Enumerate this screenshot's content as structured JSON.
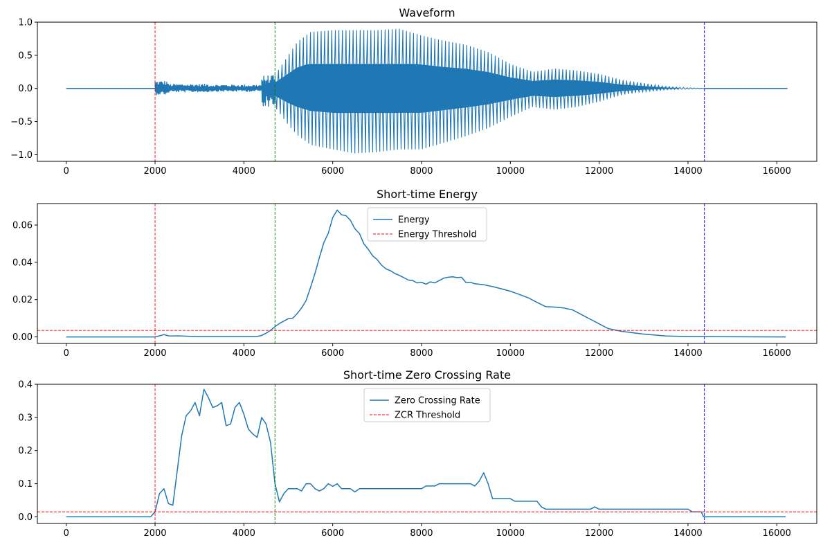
{
  "chart_data": [
    {
      "type": "line",
      "title": "Waveform",
      "xlim": [
        -650,
        16900
      ],
      "ylim": [
        -1.1,
        1.0
      ],
      "xticks": [
        0,
        2000,
        4000,
        6000,
        8000,
        10000,
        12000,
        14000,
        16000
      ],
      "yticks": [
        -1.0,
        -0.5,
        0.0,
        0.5,
        1.0
      ],
      "ytick_decimals": 1,
      "legend": null,
      "series": [
        {
          "kind": "waveform",
          "color": "#1f77b4",
          "x_range": [
            0,
            16240
          ],
          "silence": [
            0,
            2000
          ],
          "segments": [
            {
              "x": [
                2000,
                2300
              ],
              "pos": 0.12,
              "neg": -0.1
            },
            {
              "x": [
                2300,
                3200
              ],
              "pos": 0.07,
              "neg": -0.06
            },
            {
              "x": [
                3200,
                4400
              ],
              "pos": 0.06,
              "neg": -0.05
            },
            {
              "x": [
                4400,
                4700
              ],
              "pos": 0.2,
              "neg": -0.28
            }
          ],
          "envelope": [
            [
              4700,
              0.2,
              -0.28
            ],
            [
              5000,
              0.5,
              -0.55
            ],
            [
              5200,
              0.7,
              -0.7
            ],
            [
              5500,
              0.85,
              -0.85
            ],
            [
              6000,
              0.88,
              -0.92
            ],
            [
              6500,
              0.88,
              -0.98
            ],
            [
              7000,
              0.88,
              -0.96
            ],
            [
              7500,
              0.9,
              -0.92
            ],
            [
              8000,
              0.8,
              -0.92
            ],
            [
              8500,
              0.72,
              -0.82
            ],
            [
              9000,
              0.66,
              -0.72
            ],
            [
              9500,
              0.55,
              -0.6
            ],
            [
              10000,
              0.37,
              -0.43
            ],
            [
              10500,
              0.25,
              -0.28
            ],
            [
              11000,
              0.3,
              -0.32
            ],
            [
              11500,
              0.27,
              -0.28
            ],
            [
              12000,
              0.22,
              -0.2
            ],
            [
              12500,
              0.13,
              -0.1
            ],
            [
              13000,
              0.08,
              -0.05
            ],
            [
              13500,
              0.03,
              -0.02
            ],
            [
              14000,
              0.01,
              -0.01
            ],
            [
              14350,
              0.0,
              0.0
            ]
          ],
          "inner_band_max": 0.37
        }
      ],
      "vlines": [
        {
          "x": 2000,
          "color": "#ff0000"
        },
        {
          "x": 4700,
          "color": "#008000"
        },
        {
          "x": 14370,
          "color": "#0000ff"
        }
      ],
      "hlines": []
    },
    {
      "type": "line",
      "title": "Short-time Energy",
      "xlim": [
        -650,
        16900
      ],
      "ylim": [
        -0.0035,
        0.0715
      ],
      "xticks": [
        0,
        2000,
        4000,
        6000,
        8000,
        10000,
        12000,
        14000,
        16000
      ],
      "yticks": [
        0.0,
        0.02,
        0.04,
        0.06
      ],
      "ytick_decimals": 2,
      "legend": {
        "placement": "upper center",
        "labels": [
          "Energy",
          "Energy Threshold"
        ]
      },
      "series": [
        {
          "name": "Energy",
          "color": "#1f77b4",
          "x": [
            0,
            1900,
            2000,
            2100,
            2200,
            2300,
            2400,
            2500,
            3000,
            3500,
            4000,
            4200,
            4300,
            4400,
            4500,
            4600,
            4700,
            4800,
            4900,
            5000,
            5100,
            5200,
            5300,
            5400,
            5500,
            5600,
            5700,
            5800,
            5900,
            6000,
            6100,
            6200,
            6300,
            6400,
            6500,
            6600,
            6700,
            6800,
            6900,
            7000,
            7100,
            7200,
            7300,
            7400,
            7500,
            7600,
            7700,
            7800,
            7900,
            8000,
            8100,
            8200,
            8300,
            8400,
            8500,
            8600,
            8700,
            8800,
            8900,
            9000,
            9100,
            9200,
            9400,
            9600,
            9800,
            10000,
            10200,
            10400,
            10600,
            10800,
            11000,
            11200,
            11400,
            11600,
            11800,
            12000,
            12200,
            12500,
            13000,
            13500,
            14000,
            14500,
            16200
          ],
          "y": [
            0.0,
            0.0,
            0.0,
            0.0006,
            0.0012,
            0.0006,
            0.0005,
            0.0006,
            0.0001,
            0.0001,
            0.0001,
            0.0001,
            0.0002,
            0.0008,
            0.002,
            0.0035,
            0.0055,
            0.0072,
            0.0085,
            0.0098,
            0.01,
            0.0125,
            0.0155,
            0.0195,
            0.0265,
            0.034,
            0.0425,
            0.0505,
            0.0555,
            0.064,
            0.068,
            0.0655,
            0.065,
            0.0625,
            0.058,
            0.0555,
            0.05,
            0.047,
            0.0435,
            0.0415,
            0.0385,
            0.0365,
            0.0355,
            0.034,
            0.033,
            0.0318,
            0.0305,
            0.0302,
            0.029,
            0.0293,
            0.0283,
            0.0295,
            0.029,
            0.0302,
            0.0315,
            0.032,
            0.0322,
            0.0318,
            0.032,
            0.0292,
            0.0293,
            0.0285,
            0.028,
            0.027,
            0.0258,
            0.0245,
            0.0228,
            0.021,
            0.0185,
            0.0162,
            0.016,
            0.0155,
            0.0145,
            0.012,
            0.0095,
            0.007,
            0.0045,
            0.003,
            0.0015,
            0.0005,
            0.0002,
            0.0001,
            0.0
          ]
        }
      ],
      "vlines": [
        {
          "x": 2000,
          "color": "#ff0000"
        },
        {
          "x": 4700,
          "color": "#008000"
        },
        {
          "x": 14370,
          "color": "#0000ff"
        }
      ],
      "hlines": [
        {
          "name": "Energy Threshold",
          "y": 0.0035,
          "color": "#ff0000"
        }
      ]
    },
    {
      "type": "line",
      "title": "Short-time Zero Crossing Rate",
      "xlim": [
        -650,
        16900
      ],
      "ylim": [
        -0.02,
        0.4
      ],
      "xticks": [
        0,
        2000,
        4000,
        6000,
        8000,
        10000,
        12000,
        14000,
        16000
      ],
      "yticks": [
        0.0,
        0.1,
        0.2,
        0.3,
        0.4
      ],
      "ytick_decimals": 1,
      "legend": {
        "placement": "upper center",
        "labels": [
          "Zero Crossing Rate",
          "ZCR Threshold"
        ]
      },
      "series": [
        {
          "name": "Zero Crossing Rate",
          "color": "#1f77b4",
          "x": [
            0,
            1900,
            2000,
            2100,
            2200,
            2300,
            2400,
            2500,
            2600,
            2700,
            2800,
            2900,
            3000,
            3100,
            3200,
            3300,
            3400,
            3500,
            3600,
            3700,
            3800,
            3900,
            4000,
            4100,
            4200,
            4300,
            4400,
            4500,
            4600,
            4700,
            4800,
            4900,
            5000,
            5100,
            5200,
            5300,
            5400,
            5500,
            5600,
            5700,
            5800,
            5900,
            6000,
            6100,
            6200,
            6300,
            6400,
            6500,
            6600,
            7000,
            7500,
            8000,
            8100,
            8200,
            8300,
            8400,
            8500,
            9000,
            9100,
            9200,
            9300,
            9400,
            9500,
            9600,
            9800,
            10000,
            10100,
            10300,
            10600,
            10700,
            10800,
            11000,
            11500,
            11800,
            11900,
            12000,
            12500,
            13000,
            13500,
            14000,
            14100,
            14300,
            14350,
            14400,
            16200
          ],
          "y": [
            0.0,
            0.0,
            0.015,
            0.07,
            0.085,
            0.04,
            0.035,
            0.14,
            0.245,
            0.305,
            0.32,
            0.345,
            0.305,
            0.385,
            0.36,
            0.33,
            0.335,
            0.345,
            0.275,
            0.28,
            0.33,
            0.345,
            0.31,
            0.265,
            0.25,
            0.24,
            0.3,
            0.28,
            0.225,
            0.1,
            0.045,
            0.07,
            0.085,
            0.085,
            0.085,
            0.078,
            0.1,
            0.1,
            0.085,
            0.078,
            0.085,
            0.1,
            0.092,
            0.1,
            0.085,
            0.085,
            0.085,
            0.075,
            0.085,
            0.085,
            0.085,
            0.085,
            0.093,
            0.093,
            0.093,
            0.1,
            0.1,
            0.1,
            0.1,
            0.093,
            0.108,
            0.133,
            0.1,
            0.055,
            0.055,
            0.055,
            0.047,
            0.047,
            0.047,
            0.03,
            0.023,
            0.023,
            0.023,
            0.023,
            0.03,
            0.023,
            0.023,
            0.023,
            0.023,
            0.023,
            0.015,
            0.015,
            0.0,
            0.0,
            0.0
          ]
        }
      ],
      "vlines": [
        {
          "x": 2000,
          "color": "#ff0000"
        },
        {
          "x": 4700,
          "color": "#008000"
        },
        {
          "x": 14370,
          "color": "#0000ff"
        }
      ],
      "hlines": [
        {
          "name": "ZCR Threshold",
          "y": 0.015,
          "color": "#ff0000"
        }
      ]
    }
  ]
}
